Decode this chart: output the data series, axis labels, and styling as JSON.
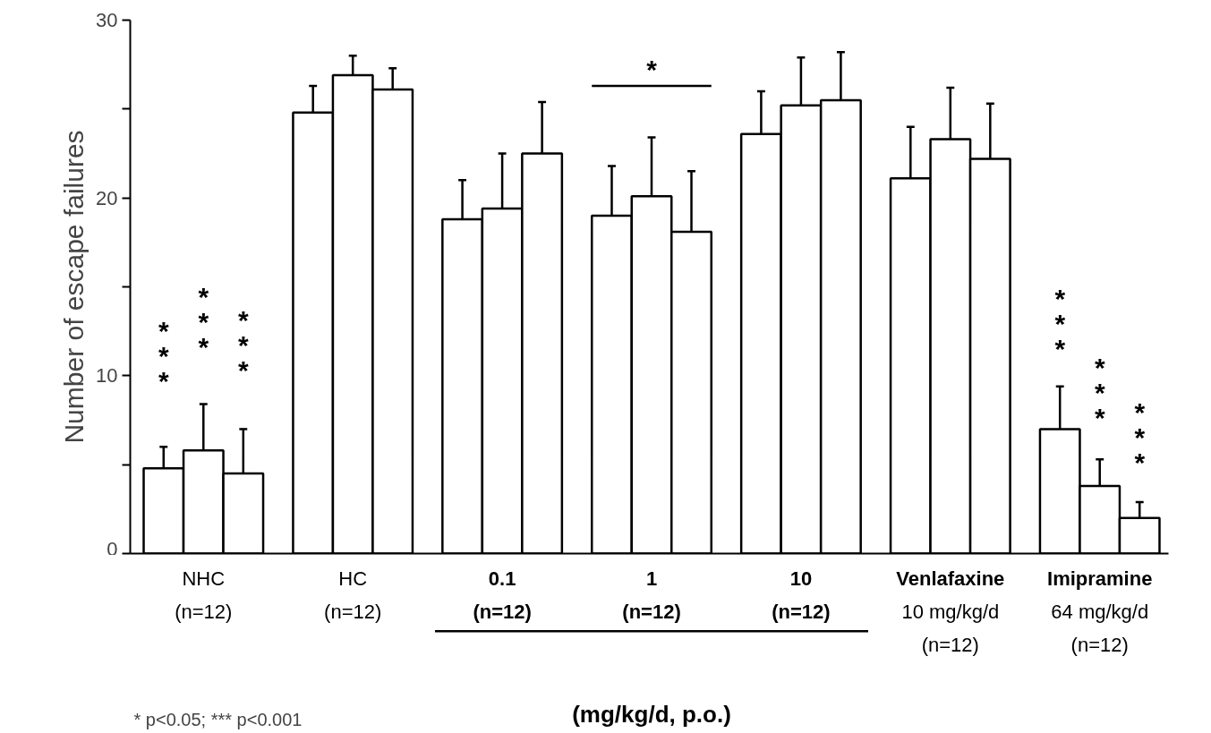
{
  "chart_data": {
    "type": "bar",
    "ylabel": "Number of escape failures",
    "xlabel": "(mg/kg/d, p.o.)",
    "categories": [
      "NHC\n(n=12)",
      "HC\n(n=12)",
      "0.1\n(n=12)",
      "1\n(n=12)",
      "10\n(n=12)",
      "Venlafaxine\n10 mg/kg/d\n(n=12)",
      "Imipramine\n64 mg/kg/d\n(n=12)"
    ],
    "series": [
      {
        "color": "#ffffff",
        "values": [
          4.8,
          24.8,
          18.8,
          19.0,
          23.6,
          21.1,
          7.0
        ],
        "errors": [
          [
            4.8,
            6.0
          ],
          [
            24.8,
            26.3
          ],
          [
            18.8,
            21.0
          ],
          [
            19.0,
            21.8
          ],
          [
            23.6,
            26.0
          ],
          [
            21.1,
            24.0
          ],
          [
            7.0,
            9.4
          ]
        ]
      },
      {
        "color": "#ffffff",
        "values": [
          5.8,
          26.9,
          19.4,
          20.1,
          25.2,
          23.3,
          3.8
        ],
        "errors": [
          [
            5.8,
            8.4
          ],
          [
            26.9,
            28.0
          ],
          [
            19.4,
            22.5
          ],
          [
            20.1,
            23.4
          ],
          [
            25.2,
            27.9
          ],
          [
            23.3,
            26.2
          ],
          [
            3.8,
            5.3
          ]
        ]
      },
      {
        "color": "#ffffff",
        "values": [
          4.5,
          26.1,
          22.5,
          18.1,
          25.5,
          22.2,
          2.0
        ],
        "errors": [
          [
            4.5,
            7.0
          ],
          [
            26.1,
            27.3
          ],
          [
            22.5,
            25.4
          ],
          [
            18.1,
            21.5
          ],
          [
            25.5,
            28.2
          ],
          [
            22.2,
            25.3
          ],
          [
            2.0,
            2.9
          ]
        ]
      }
    ],
    "ylim": [
      0,
      30
    ],
    "yticks": [
      0,
      {
        "value": 5,
        "label": null
      },
      10,
      {
        "value": 15,
        "label": null
      },
      20,
      {
        "value": 25,
        "label": null
      },
      30
    ],
    "grid": false,
    "annotations": [
      "***",
      "***",
      "***",
      "*",
      "***",
      "***",
      "***",
      "* p<0.05; *** p<0.001"
    ]
  }
}
